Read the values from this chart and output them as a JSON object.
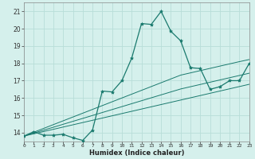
{
  "title": "",
  "xlabel": "Humidex (Indice chaleur)",
  "x": [
    0,
    1,
    2,
    3,
    4,
    5,
    6,
    7,
    8,
    9,
    10,
    11,
    12,
    13,
    14,
    15,
    16,
    17,
    18,
    19,
    20,
    21,
    22,
    23
  ],
  "y_main": [
    13.8,
    14.05,
    13.85,
    13.85,
    13.9,
    13.7,
    13.55,
    14.15,
    16.4,
    16.35,
    17.0,
    18.3,
    20.3,
    20.25,
    21.0,
    19.85,
    19.3,
    17.75,
    17.7,
    16.5,
    16.65,
    17.0,
    17.0,
    18.0
  ],
  "y_line1": [
    13.8,
    13.93,
    14.06,
    14.19,
    14.32,
    14.45,
    14.58,
    14.71,
    14.84,
    14.97,
    15.1,
    15.23,
    15.36,
    15.49,
    15.62,
    15.75,
    15.88,
    16.01,
    16.14,
    16.27,
    16.4,
    16.53,
    16.66,
    16.79
  ],
  "y_line2": [
    13.8,
    13.97,
    14.14,
    14.31,
    14.48,
    14.65,
    14.82,
    14.99,
    15.16,
    15.33,
    15.5,
    15.67,
    15.84,
    16.01,
    16.18,
    16.35,
    16.52,
    16.65,
    16.78,
    16.91,
    17.04,
    17.17,
    17.3,
    17.43
  ],
  "y_line3": [
    13.8,
    14.02,
    14.24,
    14.46,
    14.68,
    14.9,
    15.12,
    15.34,
    15.56,
    15.78,
    16.0,
    16.22,
    16.44,
    16.66,
    16.88,
    17.1,
    17.32,
    17.45,
    17.58,
    17.71,
    17.84,
    17.97,
    18.1,
    18.22
  ],
  "bg_color": "#d5f0ec",
  "grid_color": "#b8ddd8",
  "line_color": "#1a7a6e",
  "ylim": [
    13.5,
    21.5
  ],
  "xlim": [
    0,
    23
  ],
  "yticks": [
    14,
    15,
    16,
    17,
    18,
    19,
    20,
    21
  ],
  "xticks": [
    0,
    1,
    2,
    3,
    4,
    5,
    6,
    7,
    8,
    9,
    10,
    11,
    12,
    13,
    14,
    15,
    16,
    17,
    18,
    19,
    20,
    21,
    22,
    23
  ],
  "xtick_labels": [
    "0",
    "1",
    "2",
    "3",
    "4",
    "5",
    "6",
    "7",
    "8",
    "9",
    "10",
    "11",
    "12",
    "13",
    "14",
    "15",
    "16",
    "17",
    "18",
    "19",
    "20",
    "21",
    "22",
    "23"
  ]
}
